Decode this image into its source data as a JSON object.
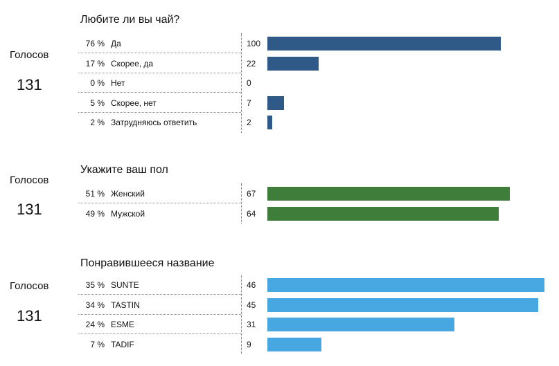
{
  "chart_data": [
    {
      "type": "bar",
      "title": "Любите ли вы чай?",
      "votes_label": "Голосов",
      "total_votes": "131",
      "color": "#2f5986",
      "categories": [
        "Да",
        "Скорее, да",
        "Нет",
        "Скорее, нет",
        "Затрудняюсь ответить"
      ],
      "percents": [
        "76 %",
        "17 %",
        "0 %",
        "5 %",
        "2 %"
      ],
      "values": [
        100,
        22,
        0,
        7,
        2
      ]
    },
    {
      "type": "bar",
      "title": "Укажите ваш пол",
      "votes_label": "Голосов",
      "total_votes": "131",
      "color": "#3f7d3a",
      "categories": [
        "Женский",
        "Мужской"
      ],
      "percents": [
        "51 %",
        "49 %"
      ],
      "values": [
        67,
        64
      ]
    },
    {
      "type": "bar",
      "title": "Понравившееся название",
      "votes_label": "Голосов",
      "total_votes": "131",
      "color": "#47a7e0",
      "categories": [
        "SUNTE",
        "TASTIN",
        "ESME",
        "TADIF"
      ],
      "percents": [
        "35 %",
        "34 %",
        "24 %",
        "7 %"
      ],
      "values": [
        46,
        45,
        31,
        9
      ]
    }
  ]
}
